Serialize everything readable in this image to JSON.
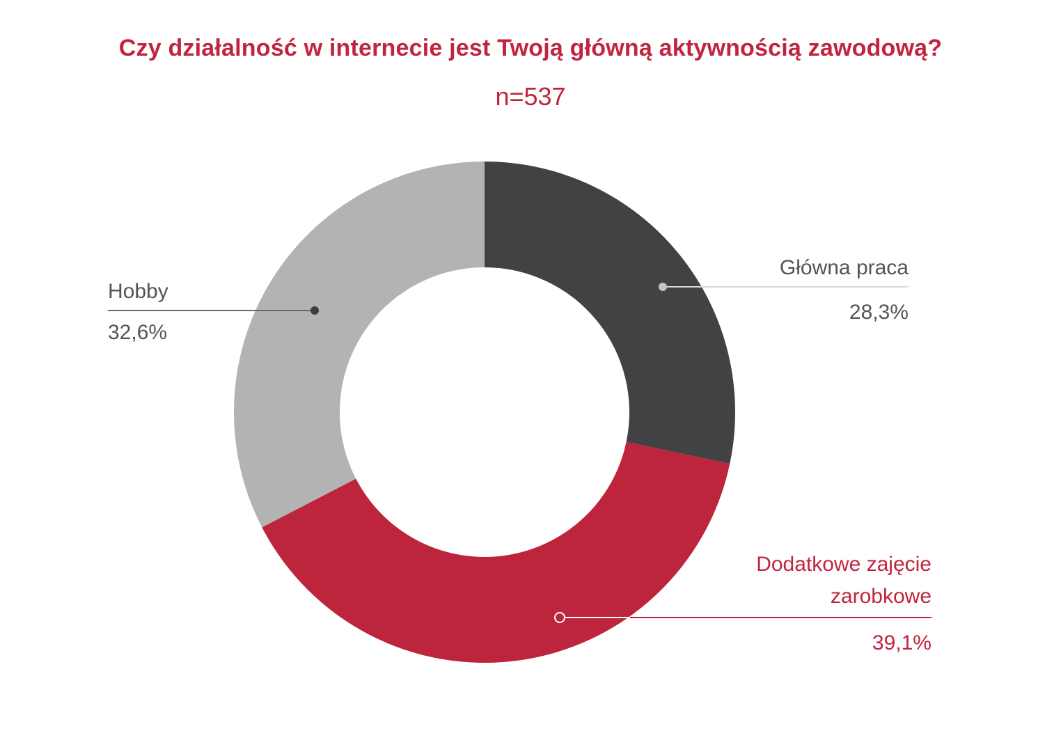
{
  "chart_data": {
    "type": "pie",
    "donut": true,
    "title": "Czy działalność w internecie jest Twoją główną aktywnością zawodową?",
    "subtitle": "n=537",
    "slices": [
      {
        "label": "Główna praca",
        "value_text": "28,3%",
        "value": 28.3,
        "color": "#424244",
        "label_color": "#545454"
      },
      {
        "label": "Dodatkowe zajęcie zarobkowe",
        "label_lines": [
          "Dodatkowe zajęcie",
          "zarobkowe"
        ],
        "value_text": "39,1%",
        "value": 39.1,
        "color": "#bc253c",
        "label_color": "#c1243f"
      },
      {
        "label": "Hobby",
        "value_text": "32,6%",
        "value": 32.6,
        "color": "#b3b3b3",
        "label_color": "#545454"
      }
    ],
    "start": "top",
    "direction": "clockwise"
  }
}
